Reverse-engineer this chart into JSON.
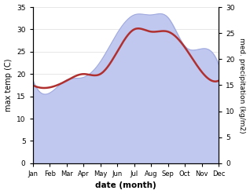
{
  "months": [
    "Jan",
    "Feb",
    "Mar",
    "Apr",
    "May",
    "Jun",
    "Jul",
    "Aug",
    "Sep",
    "Oct",
    "Nov",
    "Dec"
  ],
  "max_temp": [
    17.5,
    17.0,
    18.5,
    20.0,
    20.0,
    25.0,
    30.0,
    29.5,
    29.5,
    26.0,
    20.5,
    18.5
  ],
  "precipitation": [
    16.0,
    13.5,
    16.0,
    16.5,
    19.5,
    25.0,
    28.5,
    28.5,
    28.0,
    22.5,
    22.0,
    19.0
  ],
  "temp_color": "#b03030",
  "precip_fill_color": "#c0c8f0",
  "precip_line_color": "#a0aade",
  "xlabel": "date (month)",
  "ylabel_left": "max temp (C)",
  "ylabel_right": "med. precipitation (kg/m2)",
  "ylim_left": [
    0,
    35
  ],
  "ylim_right": [
    0,
    30
  ],
  "yticks_left": [
    0,
    5,
    10,
    15,
    20,
    25,
    30,
    35
  ],
  "yticks_right": [
    0,
    5,
    10,
    15,
    20,
    25,
    30
  ],
  "background_color": "#ffffff",
  "temp_linewidth": 1.8,
  "grid_color": "#dddddd"
}
